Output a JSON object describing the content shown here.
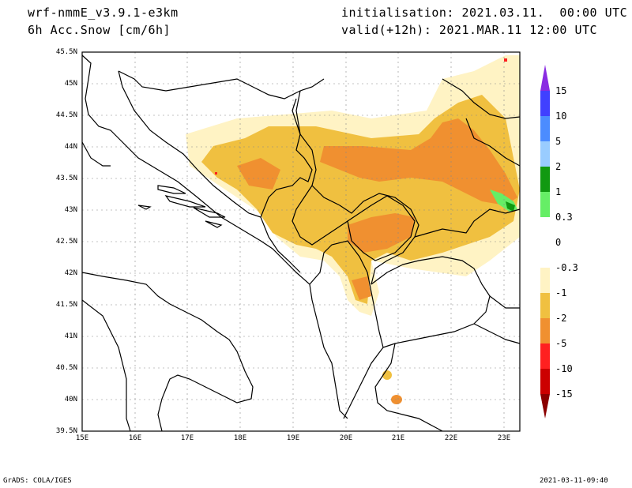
{
  "header": {
    "model": "wrf-nmmE_v3.9.1-e3km",
    "variable": "6h Acc.Snow [cm/6h]",
    "initialisation": "initialisation: 2021.03.11.  00:00 UTC",
    "valid": "valid(+12h): 2021.MAR.11 12:00 UTC"
  },
  "map": {
    "lon_range": [
      15,
      23.3
    ],
    "lat_range": [
      39.5,
      45.5
    ],
    "lat_labels": [
      "45.5N",
      "45N",
      "44.5N",
      "44N",
      "43.5N",
      "43N",
      "42.5N",
      "42N",
      "41.5N",
      "41N",
      "40.5N",
      "40N",
      "39.5N"
    ],
    "lon_labels": [
      "15E",
      "16E",
      "17E",
      "18E",
      "19E",
      "20E",
      "21E",
      "22E",
      "23E"
    ]
  },
  "colorbar": {
    "labels": [
      "15",
      "10",
      "5",
      "2",
      "1",
      "0.3",
      "0",
      "-0.3",
      "-1",
      "-2",
      "-5",
      "-10",
      "-15"
    ],
    "colors": [
      "#4040ff",
      "#4c8cff",
      "#99ccff",
      "#119911",
      "#66ee66",
      "#ffffff",
      "#ffffff",
      "#fff3c4",
      "#f0c040",
      "#f09030",
      "#ff2020",
      "#cc0000",
      "#880000"
    ],
    "top_arrow_color": "#8a2be2",
    "bottom_arrow_color": "#8b0000"
  },
  "footer": {
    "left": "GrADS: COLA/IGES",
    "right": "2021-03-11-09:40"
  }
}
